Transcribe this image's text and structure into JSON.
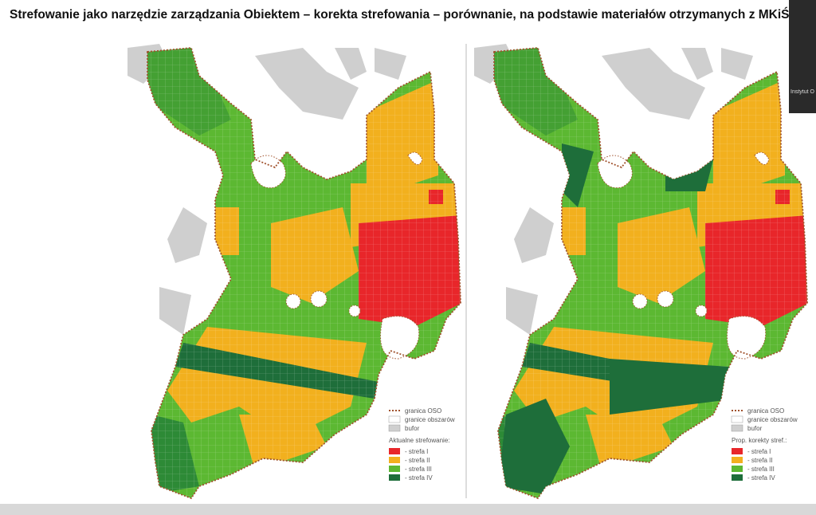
{
  "header": {
    "title": "Strefowanie jako narzędzie zarządzania Obiektem – korekta strefowania – porównanie, na podstawie materiałów otrzymanych z MKiŚ"
  },
  "maps": [
    {
      "legend": {
        "items": [
          "granica OSO",
          "granice obszarów",
          "bufor"
        ],
        "zoning_title": "Aktualne strefowanie:",
        "zones": [
          "- strefa I",
          "- strefa II",
          "- strefa III",
          "- strefa IV"
        ]
      }
    },
    {
      "legend": {
        "items": [
          "granica OSO",
          "granice obszarów",
          "bufor"
        ],
        "zoning_title": "Prop. korekty stref.:",
        "zones": [
          "- strefa I",
          "- strefa II",
          "- strefa III",
          "- strefa IV"
        ]
      }
    }
  ],
  "participant": {
    "name": "Instytut O"
  }
}
